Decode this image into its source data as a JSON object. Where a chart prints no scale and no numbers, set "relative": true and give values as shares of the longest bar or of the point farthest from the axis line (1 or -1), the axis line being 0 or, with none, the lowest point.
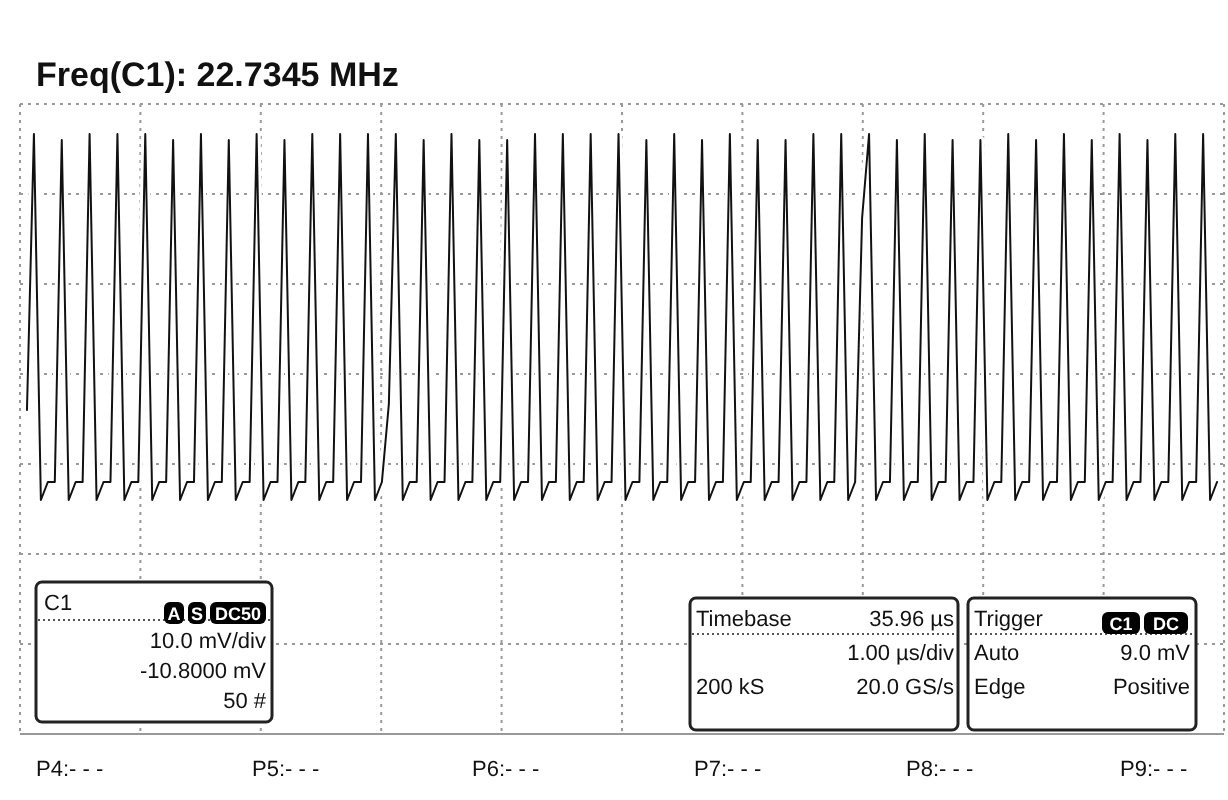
{
  "chart_data": {
    "type": "line",
    "title": "Freq(C1): 22.7345 MHz",
    "relative": true,
    "grid": true,
    "categories": [
      null,
      null,
      null,
      null,
      null,
      null,
      null,
      null,
      null,
      null,
      null,
      null,
      null,
      null,
      null,
      null,
      null,
      null,
      null,
      null,
      null,
      null,
      null,
      null,
      null,
      null,
      null,
      null,
      null,
      null,
      null,
      null,
      null,
      null,
      null,
      null,
      null,
      null,
      null,
      null,
      null,
      null,
      null,
      null,
      null,
      null,
      null,
      null,
      null,
      null,
      null,
      null,
      null,
      null,
      null,
      null,
      null,
      null,
      null,
      null,
      null,
      null,
      null,
      null,
      null,
      null,
      null,
      null,
      null,
      null,
      null,
      null,
      null,
      null,
      null,
      null,
      null,
      null,
      null,
      null,
      null,
      null,
      null,
      null,
      null,
      null,
      null,
      null,
      null,
      null,
      null,
      null,
      null,
      null,
      null,
      null,
      null,
      null,
      null,
      null,
      null,
      null,
      null,
      null,
      null,
      null,
      null,
      null,
      null,
      null,
      null,
      null,
      null,
      null,
      null,
      null,
      null,
      null,
      null,
      null,
      null,
      null,
      null,
      null,
      null,
      null,
      null,
      null,
      null,
      null,
      null,
      null,
      null,
      null,
      null,
      null,
      null,
      null,
      null,
      null,
      null,
      null,
      null,
      null,
      null,
      null,
      null,
      null,
      null,
      null,
      null,
      null,
      null,
      null,
      null,
      null,
      null,
      null,
      null,
      null,
      null,
      null,
      null,
      null,
      null,
      null,
      null,
      null,
      null,
      null,
      null,
      null
    ],
    "series": [
      {
        "color": "#111111",
        "values": [
          0.54,
          1,
          0.39,
          0.42,
          0.42,
          0.99,
          0.39,
          0.42,
          0.42,
          1,
          0.39,
          0.42,
          0.42,
          1,
          0.39,
          0.42,
          0.42,
          1,
          0.39,
          0.42,
          0.42,
          0.99,
          0.39,
          0.42,
          0.42,
          1,
          0.39,
          0.42,
          0.42,
          0.99,
          0.39,
          0.42,
          0.42,
          1,
          0.39,
          0.42,
          0.42,
          0.99,
          0.39,
          0.42,
          0.42,
          1,
          0.39,
          0.42,
          0.42,
          1,
          0.39,
          0.42,
          0.42,
          1,
          0.39,
          0.42,
          0.55,
          1,
          0.39,
          0.42,
          0.42,
          0.99,
          0.39,
          0.42,
          0.42,
          1,
          0.39,
          0.42,
          0.42,
          0.99,
          0.39,
          0.42,
          0.42,
          0.99,
          0.39,
          0.42,
          0.42,
          1,
          0.39,
          0.42,
          0.42,
          1,
          0.39,
          0.42,
          0.42,
          1,
          0.39,
          0.42,
          0.42,
          1,
          0.39,
          0.42,
          0.42,
          0.99,
          0.39,
          0.42,
          0.42,
          1,
          0.39,
          0.42,
          0.42,
          0.99,
          0.39,
          0.42,
          0.42,
          1,
          0.39,
          0.42,
          0.42,
          0.99,
          0.39,
          0.42,
          0.42,
          0.99,
          0.39,
          0.42,
          0.42,
          1,
          0.39,
          0.42,
          0.42,
          1,
          0.39,
          0.42,
          0.86,
          1,
          0.39,
          0.42,
          0.42,
          0.99,
          0.39,
          0.42,
          0.42,
          1,
          0.39,
          0.42,
          0.42,
          0.99,
          0.39,
          0.42,
          0.42,
          0.99,
          0.39,
          0.42,
          0.42,
          1,
          0.39,
          0.42,
          0.42,
          0.99,
          0.39,
          0.42,
          0.42,
          1,
          0.39,
          0.42,
          0.42,
          0.99,
          0.39,
          0.42,
          0.42,
          1,
          0.39,
          0.42,
          0.42,
          0.99,
          0.39,
          0.42,
          0.42,
          1,
          0.39,
          0.42,
          0.42,
          1,
          0.39,
          0.42
        ]
      }
    ],
    "annotations": [
      "C1",
      "A",
      "S",
      "DC50",
      "10.0 mV/div",
      "-10.8000 mV",
      "50 #",
      "Timebase",
      "35.96 µs",
      "1.00 µs/div",
      "200 kS",
      "20.0 GS/s",
      "Trigger",
      "C1",
      "DC",
      "Auto",
      "9.0 mV",
      "Edge",
      "Positive",
      "P4:- - -",
      "P5:- - -",
      "P6:- - -",
      "P7:- - -",
      "P8:- - -",
      "P9:- - -"
    ]
  }
}
